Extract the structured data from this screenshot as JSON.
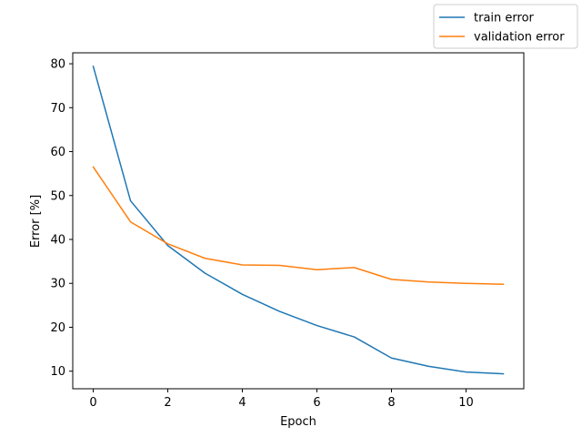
{
  "chart_data": {
    "type": "line",
    "title": "",
    "xlabel": "Epoch",
    "ylabel": "Error [%]",
    "xlim": [
      -0.55,
      11.55
    ],
    "ylim": [
      6,
      82.5
    ],
    "xticks": [
      0,
      2,
      4,
      6,
      8,
      10
    ],
    "yticks": [
      10,
      20,
      30,
      40,
      50,
      60,
      70,
      80
    ],
    "grid": false,
    "legend_position": "top-right, outside plot area",
    "x": [
      0,
      1,
      2,
      3,
      4,
      5,
      6,
      7,
      8,
      9,
      10,
      11
    ],
    "series": [
      {
        "name": "train error",
        "color": "#1f77b4",
        "values": [
          79.4,
          48.8,
          38.6,
          32.3,
          27.5,
          23.6,
          20.4,
          17.8,
          13.0,
          11.1,
          9.8,
          9.4
        ]
      },
      {
        "name": "validation error",
        "color": "#ff7f0e",
        "values": [
          56.5,
          44.0,
          39.0,
          35.7,
          34.2,
          34.1,
          33.1,
          33.6,
          30.9,
          30.3,
          30.0,
          29.8
        ]
      }
    ]
  }
}
